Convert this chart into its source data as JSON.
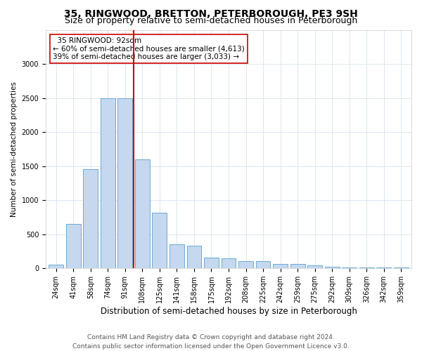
{
  "title": "35, RINGWOOD, BRETTON, PETERBOROUGH, PE3 9SH",
  "subtitle": "Size of property relative to semi-detached houses in Peterborough",
  "xlabel": "Distribution of semi-detached houses by size in Peterborough",
  "ylabel": "Number of semi-detached properties",
  "footer_line1": "Contains HM Land Registry data © Crown copyright and database right 2024.",
  "footer_line2": "Contains public sector information licensed under the Open Government Licence v3.0.",
  "annotation_title": "35 RINGWOOD: 92sqm",
  "annotation_line1": "← 60% of semi-detached houses are smaller (4,613)",
  "annotation_line2": "39% of semi-detached houses are larger (3,033) →",
  "property_size_idx": 4,
  "categories": [
    "24sqm",
    "41sqm",
    "58sqm",
    "74sqm",
    "91sqm",
    "108sqm",
    "125sqm",
    "141sqm",
    "158sqm",
    "175sqm",
    "192sqm",
    "208sqm",
    "225sqm",
    "242sqm",
    "259sqm",
    "275sqm",
    "292sqm",
    "309sqm",
    "326sqm",
    "342sqm",
    "359sqm"
  ],
  "values": [
    50,
    650,
    1450,
    2500,
    2500,
    1600,
    820,
    350,
    330,
    160,
    150,
    110,
    110,
    65,
    65,
    40,
    20,
    15,
    10,
    8,
    8
  ],
  "ylim": [
    0,
    3500
  ],
  "yticks": [
    0,
    500,
    1000,
    1500,
    2000,
    2500,
    3000
  ],
  "bar_color": "#c5d8ef",
  "bar_edge_color": "#6aaad4",
  "property_line_color": "#cc0000",
  "annotation_box_edge_color": "#cc0000",
  "background_color": "#ffffff",
  "grid_color": "#dce6f0",
  "title_fontsize": 10,
  "subtitle_fontsize": 9,
  "xlabel_fontsize": 8.5,
  "ylabel_fontsize": 7.5,
  "tick_fontsize": 7,
  "annotation_fontsize": 7.5,
  "footer_fontsize": 6.5
}
